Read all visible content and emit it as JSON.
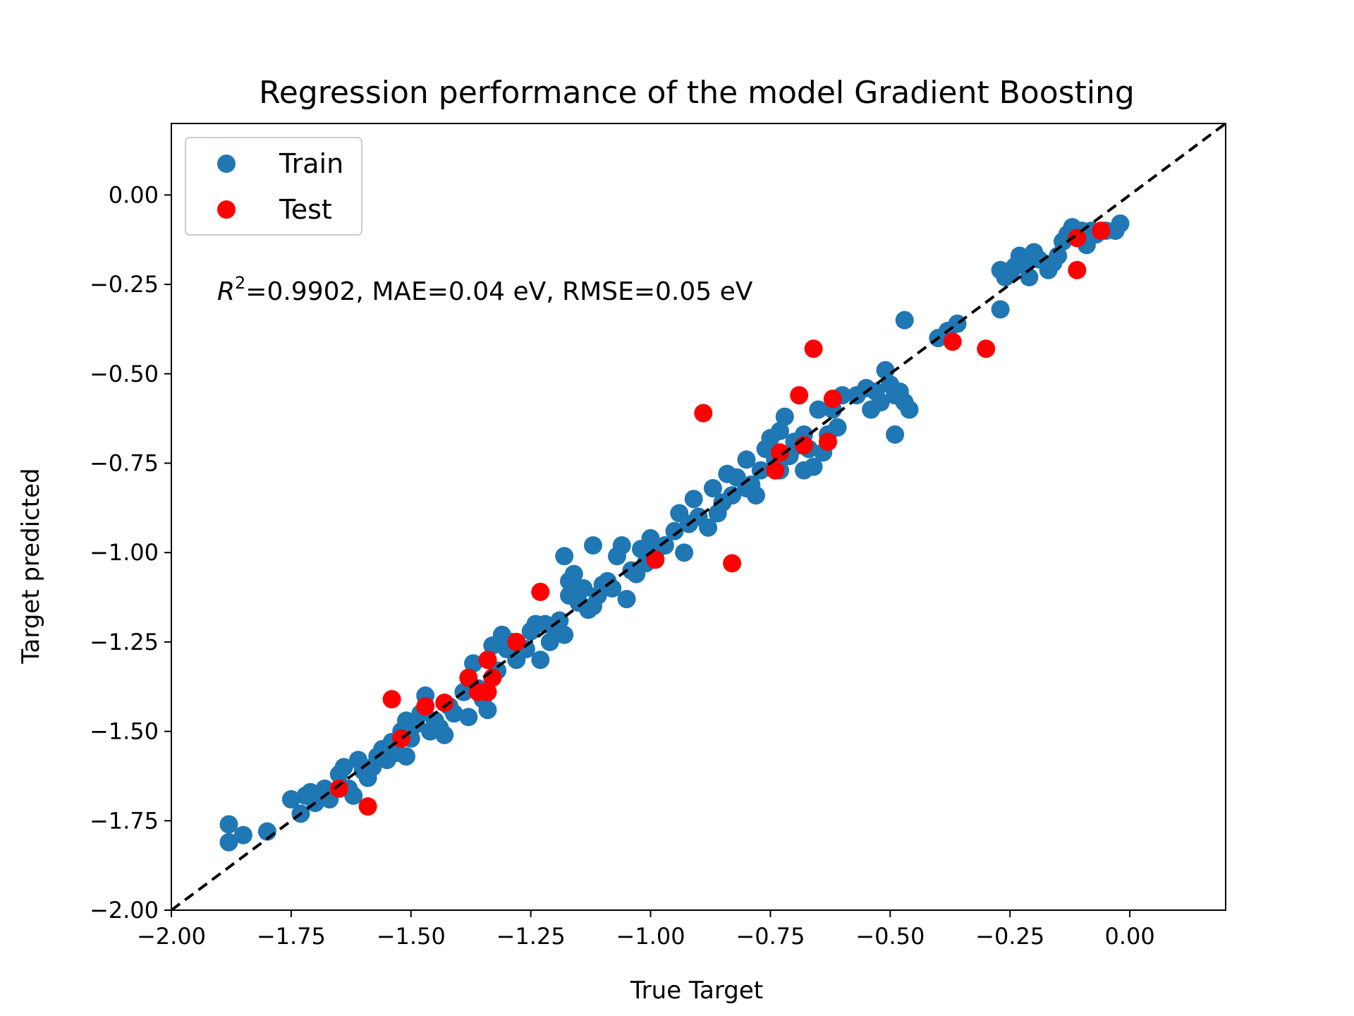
{
  "chart_data": {
    "type": "scatter",
    "title": "Regression performance of the model Gradient Boosting",
    "xlabel": "True Target",
    "ylabel": "Target predicted",
    "xlim": [
      -2.0,
      0.2
    ],
    "ylim": [
      -2.0,
      0.2
    ],
    "xticks": [
      -2.0,
      -1.75,
      -1.5,
      -1.25,
      -1.0,
      -0.75,
      -0.5,
      -0.25,
      0.0
    ],
    "yticks": [
      -2.0,
      -1.75,
      -1.5,
      -1.25,
      -1.0,
      -0.75,
      -0.5,
      -0.25,
      0.0
    ],
    "xtick_labels": [
      "−2.00",
      "−1.75",
      "−1.50",
      "−1.25",
      "−1.00",
      "−0.75",
      "−0.50",
      "−0.25",
      "0.00"
    ],
    "ytick_labels": [
      "−2.00",
      "−1.75",
      "−1.50",
      "−1.25",
      "−1.00",
      "−0.75",
      "−0.50",
      "−0.25",
      "0.00"
    ],
    "grid": false,
    "legend_position": "top-left",
    "annotation": {
      "r2_symbol": "R",
      "r2_exponent": "2",
      "text": "=0.9902, MAE=0.04 eV, RMSE=0.05 eV"
    },
    "reference_line": {
      "style": "dashed",
      "color": "#000000",
      "from": [
        -2.0,
        -2.0
      ],
      "to": [
        0.2,
        0.2
      ]
    },
    "series": [
      {
        "name": "Train",
        "color": "#1f77b4",
        "points": [
          [
            -1.88,
            -1.76
          ],
          [
            -1.88,
            -1.81
          ],
          [
            -1.85,
            -1.79
          ],
          [
            -1.8,
            -1.78
          ],
          [
            -1.75,
            -1.69
          ],
          [
            -1.73,
            -1.73
          ],
          [
            -1.72,
            -1.68
          ],
          [
            -1.71,
            -1.67
          ],
          [
            -1.7,
            -1.7
          ],
          [
            -1.69,
            -1.68
          ],
          [
            -1.68,
            -1.66
          ],
          [
            -1.67,
            -1.69
          ],
          [
            -1.65,
            -1.62
          ],
          [
            -1.64,
            -1.6
          ],
          [
            -1.63,
            -1.66
          ],
          [
            -1.62,
            -1.68
          ],
          [
            -1.61,
            -1.58
          ],
          [
            -1.6,
            -1.61
          ],
          [
            -1.59,
            -1.63
          ],
          [
            -1.58,
            -1.6
          ],
          [
            -1.57,
            -1.57
          ],
          [
            -1.56,
            -1.55
          ],
          [
            -1.55,
            -1.58
          ],
          [
            -1.54,
            -1.53
          ],
          [
            -1.53,
            -1.56
          ],
          [
            -1.52,
            -1.5
          ],
          [
            -1.51,
            -1.47
          ],
          [
            -1.51,
            -1.57
          ],
          [
            -1.5,
            -1.52
          ],
          [
            -1.49,
            -1.48
          ],
          [
            -1.48,
            -1.45
          ],
          [
            -1.47,
            -1.4
          ],
          [
            -1.46,
            -1.5
          ],
          [
            -1.45,
            -1.47
          ],
          [
            -1.44,
            -1.49
          ],
          [
            -1.43,
            -1.51
          ],
          [
            -1.42,
            -1.43
          ],
          [
            -1.41,
            -1.45
          ],
          [
            -1.39,
            -1.39
          ],
          [
            -1.38,
            -1.46
          ],
          [
            -1.37,
            -1.31
          ],
          [
            -1.36,
            -1.38
          ],
          [
            -1.35,
            -1.41
          ],
          [
            -1.34,
            -1.44
          ],
          [
            -1.33,
            -1.26
          ],
          [
            -1.32,
            -1.33
          ],
          [
            -1.31,
            -1.23
          ],
          [
            -1.3,
            -1.27
          ],
          [
            -1.29,
            -1.25
          ],
          [
            -1.28,
            -1.3
          ],
          [
            -1.26,
            -1.27
          ],
          [
            -1.25,
            -1.22
          ],
          [
            -1.24,
            -1.2
          ],
          [
            -1.23,
            -1.3
          ],
          [
            -1.22,
            -1.2
          ],
          [
            -1.21,
            -1.25
          ],
          [
            -1.2,
            -1.21
          ],
          [
            -1.19,
            -1.19
          ],
          [
            -1.18,
            -1.23
          ],
          [
            -1.18,
            -1.01
          ],
          [
            -1.17,
            -1.08
          ],
          [
            -1.17,
            -1.12
          ],
          [
            -1.16,
            -1.06
          ],
          [
            -1.15,
            -1.14
          ],
          [
            -1.14,
            -1.1
          ],
          [
            -1.13,
            -1.16
          ],
          [
            -1.12,
            -1.15
          ],
          [
            -1.12,
            -0.98
          ],
          [
            -1.11,
            -1.12
          ],
          [
            -1.1,
            -1.09
          ],
          [
            -1.09,
            -1.08
          ],
          [
            -1.08,
            -1.1
          ],
          [
            -1.07,
            -1.01
          ],
          [
            -1.06,
            -0.98
          ],
          [
            -1.05,
            -1.13
          ],
          [
            -1.04,
            -1.05
          ],
          [
            -1.03,
            -1.06
          ],
          [
            -1.02,
            -0.99
          ],
          [
            -1.01,
            -1.03
          ],
          [
            -1.0,
            -0.96
          ],
          [
            -0.99,
            -1.0
          ],
          [
            -0.97,
            -0.98
          ],
          [
            -0.95,
            -0.94
          ],
          [
            -0.94,
            -0.89
          ],
          [
            -0.93,
            -1.0
          ],
          [
            -0.92,
            -0.92
          ],
          [
            -0.91,
            -0.85
          ],
          [
            -0.9,
            -0.9
          ],
          [
            -0.88,
            -0.93
          ],
          [
            -0.87,
            -0.82
          ],
          [
            -0.86,
            -0.89
          ],
          [
            -0.85,
            -0.86
          ],
          [
            -0.84,
            -0.78
          ],
          [
            -0.83,
            -0.84
          ],
          [
            -0.82,
            -0.79
          ],
          [
            -0.8,
            -0.74
          ],
          [
            -0.8,
            -0.82
          ],
          [
            -0.79,
            -0.81
          ],
          [
            -0.78,
            -0.84
          ],
          [
            -0.77,
            -0.77
          ],
          [
            -0.76,
            -0.71
          ],
          [
            -0.75,
            -0.68
          ],
          [
            -0.74,
            -0.74
          ],
          [
            -0.73,
            -0.66
          ],
          [
            -0.73,
            -0.77
          ],
          [
            -0.72,
            -0.62
          ],
          [
            -0.71,
            -0.73
          ],
          [
            -0.7,
            -0.69
          ],
          [
            -0.69,
            -0.7
          ],
          [
            -0.68,
            -0.67
          ],
          [
            -0.68,
            -0.77
          ],
          [
            -0.67,
            -0.71
          ],
          [
            -0.66,
            -0.76
          ],
          [
            -0.65,
            -0.6
          ],
          [
            -0.64,
            -0.72
          ],
          [
            -0.63,
            -0.67
          ],
          [
            -0.62,
            -0.6
          ],
          [
            -0.61,
            -0.65
          ],
          [
            -0.6,
            -0.56
          ],
          [
            -0.57,
            -0.56
          ],
          [
            -0.55,
            -0.54
          ],
          [
            -0.54,
            -0.6
          ],
          [
            -0.53,
            -0.55
          ],
          [
            -0.52,
            -0.58
          ],
          [
            -0.51,
            -0.49
          ],
          [
            -0.5,
            -0.53
          ],
          [
            -0.49,
            -0.67
          ],
          [
            -0.49,
            -0.56
          ],
          [
            -0.48,
            -0.55
          ],
          [
            -0.47,
            -0.58
          ],
          [
            -0.47,
            -0.35
          ],
          [
            -0.46,
            -0.6
          ],
          [
            -0.4,
            -0.4
          ],
          [
            -0.38,
            -0.38
          ],
          [
            -0.36,
            -0.36
          ],
          [
            -0.27,
            -0.32
          ],
          [
            -0.27,
            -0.21
          ],
          [
            -0.26,
            -0.23
          ],
          [
            -0.25,
            -0.22
          ],
          [
            -0.24,
            -0.2
          ],
          [
            -0.23,
            -0.17
          ],
          [
            -0.22,
            -0.19
          ],
          [
            -0.21,
            -0.23
          ],
          [
            -0.2,
            -0.16
          ],
          [
            -0.19,
            -0.18
          ],
          [
            -0.17,
            -0.21
          ],
          [
            -0.16,
            -0.19
          ],
          [
            -0.15,
            -0.17
          ],
          [
            -0.14,
            -0.13
          ],
          [
            -0.13,
            -0.11
          ],
          [
            -0.12,
            -0.09
          ],
          [
            -0.11,
            -0.12
          ],
          [
            -0.1,
            -0.1
          ],
          [
            -0.09,
            -0.14
          ],
          [
            -0.08,
            -0.1
          ],
          [
            -0.07,
            -0.11
          ],
          [
            -0.05,
            -0.1
          ],
          [
            -0.03,
            -0.1
          ],
          [
            -0.02,
            -0.08
          ]
        ]
      },
      {
        "name": "Test",
        "color": "#ff0000",
        "points": [
          [
            -1.65,
            -1.66
          ],
          [
            -1.59,
            -1.71
          ],
          [
            -1.54,
            -1.41
          ],
          [
            -1.52,
            -1.52
          ],
          [
            -1.47,
            -1.43
          ],
          [
            -1.43,
            -1.42
          ],
          [
            -1.38,
            -1.35
          ],
          [
            -1.36,
            -1.39
          ],
          [
            -1.34,
            -1.39
          ],
          [
            -1.34,
            -1.3
          ],
          [
            -1.33,
            -1.35
          ],
          [
            -1.28,
            -1.25
          ],
          [
            -1.23,
            -1.11
          ],
          [
            -0.99,
            -1.02
          ],
          [
            -0.89,
            -0.61
          ],
          [
            -0.83,
            -1.03
          ],
          [
            -0.74,
            -0.77
          ],
          [
            -0.73,
            -0.72
          ],
          [
            -0.69,
            -0.56
          ],
          [
            -0.68,
            -0.7
          ],
          [
            -0.66,
            -0.43
          ],
          [
            -0.63,
            -0.69
          ],
          [
            -0.62,
            -0.57
          ],
          [
            -0.37,
            -0.41
          ],
          [
            -0.3,
            -0.43
          ],
          [
            -0.11,
            -0.21
          ],
          [
            -0.11,
            -0.12
          ],
          [
            -0.06,
            -0.1
          ]
        ]
      }
    ]
  }
}
